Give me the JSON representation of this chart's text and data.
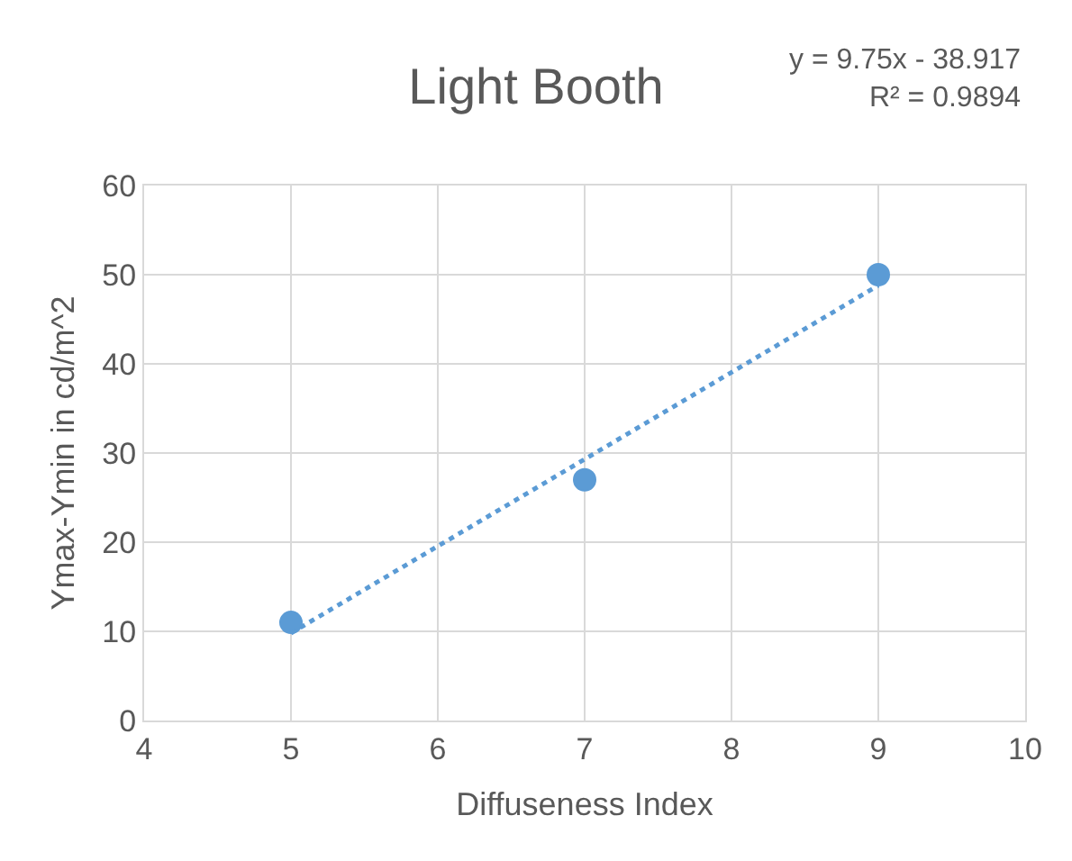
{
  "chart_data": {
    "type": "scatter",
    "title": "Light Booth",
    "xlabel": "Diffuseness Index",
    "ylabel": "Ymax-Ymin in cd/m^2",
    "annotations": [
      "y = 9.75x - 38.917\nR² = 0.9894"
    ],
    "x": [
      5,
      7,
      9
    ],
    "series": [
      {
        "color": "#5b9bd5",
        "values": [
          11,
          27,
          50
        ],
        "marker": "circle"
      },
      {
        "type": "line",
        "color": "#5b9bd5",
        "x": [
          5,
          9
        ],
        "values": [
          9.8,
          48.8
        ],
        "marker": "none",
        "line_style": "dotted"
      }
    ],
    "xlim": [
      4,
      10
    ],
    "xticks": [
      4,
      5,
      6,
      7,
      8,
      9,
      10
    ],
    "ylim": [
      0,
      60
    ],
    "yticks": [
      0,
      10,
      20,
      30,
      40,
      50,
      60
    ],
    "grid": true
  }
}
